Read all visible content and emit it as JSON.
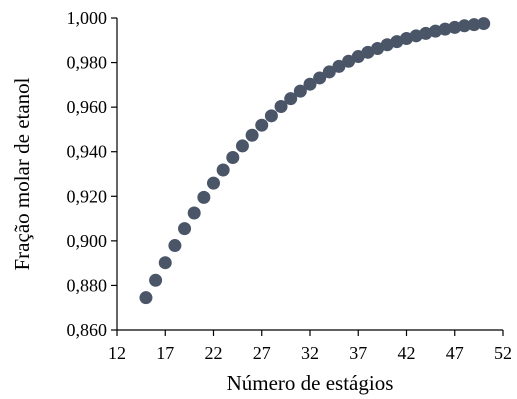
{
  "chart_data": {
    "type": "scatter",
    "xlabel": "Número de estágios",
    "ylabel": "Fração molar de etanol",
    "xlim": [
      12,
      52
    ],
    "ylim": [
      0.86,
      1.0
    ],
    "x_ticks": [
      12,
      17,
      22,
      27,
      32,
      37,
      42,
      47,
      52
    ],
    "x_tick_labels": [
      "12",
      "17",
      "22",
      "27",
      "32",
      "37",
      "42",
      "47",
      "52"
    ],
    "y_ticks": [
      0.86,
      0.88,
      0.9,
      0.92,
      0.94,
      0.96,
      0.98,
      1.0
    ],
    "y_tick_labels": [
      "0,860",
      "0,880",
      "0,900",
      "0,920",
      "0,940",
      "0,960",
      "0,980",
      "1,000"
    ],
    "grid": false,
    "legend": "none",
    "marker_color": "#4a5568",
    "series": [
      {
        "x": [
          15,
          16,
          17,
          18,
          19,
          20,
          21,
          22,
          23,
          24,
          25,
          26,
          27,
          28,
          29,
          30,
          31,
          32,
          33,
          34,
          35,
          36,
          37,
          38,
          39,
          40,
          41,
          42,
          43,
          44,
          45,
          46,
          47,
          48,
          49,
          50
        ],
        "y": [
          0.8745,
          0.8823,
          0.8902,
          0.8979,
          0.9055,
          0.9125,
          0.9195,
          0.9259,
          0.9318,
          0.9374,
          0.9426,
          0.9474,
          0.9519,
          0.9561,
          0.9603,
          0.9638,
          0.9672,
          0.9703,
          0.9731,
          0.9758,
          0.9783,
          0.9806,
          0.9827,
          0.9846,
          0.9863,
          0.988,
          0.9894,
          0.9908,
          0.992,
          0.9931,
          0.9941,
          0.995,
          0.9958,
          0.9965,
          0.997,
          0.9975
        ]
      }
    ]
  }
}
